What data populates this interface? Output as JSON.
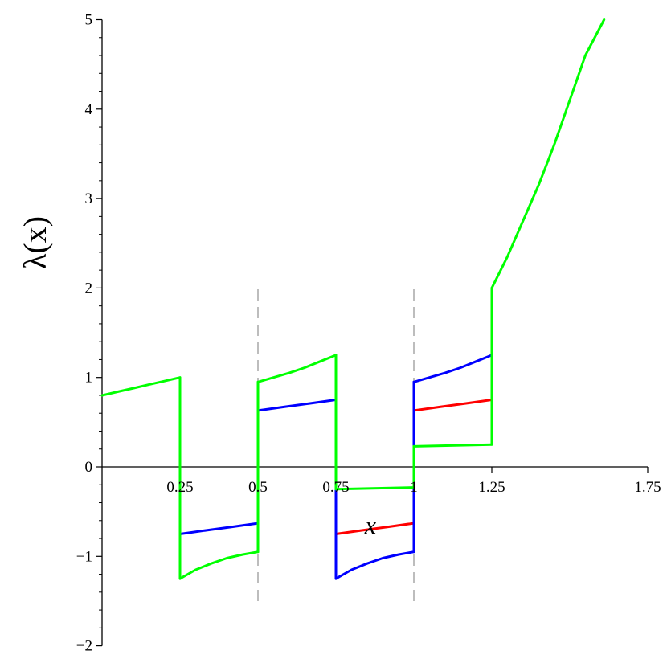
{
  "chart_data": {
    "type": "line",
    "xlabel": "x",
    "ylabel": "λ(x)",
    "xlim": [
      0,
      1.75
    ],
    "ylim": [
      -2,
      5
    ],
    "x_ticks": [
      {
        "value": 0.25,
        "label": "0.25"
      },
      {
        "value": 0.5,
        "label": "0.5"
      },
      {
        "value": 0.75,
        "label": "0.75"
      },
      {
        "value": 1.0,
        "label": "1"
      },
      {
        "value": 1.25,
        "label": "1.25"
      },
      {
        "value": 1.75,
        "label": "1.75"
      }
    ],
    "y_ticks": [
      {
        "value": -2,
        "label": "−2"
      },
      {
        "value": -1,
        "label": "−1"
      },
      {
        "value": 0,
        "label": "0"
      },
      {
        "value": 1,
        "label": "1"
      },
      {
        "value": 2,
        "label": "2"
      },
      {
        "value": 3,
        "label": "3"
      },
      {
        "value": 4,
        "label": "4"
      },
      {
        "value": 5,
        "label": "5"
      }
    ],
    "y_minor_step": 0.2,
    "grid": false,
    "legend": "none",
    "reference_lines": [
      {
        "x": 0.5,
        "y_range": [
          -1.5,
          2.0
        ],
        "style": "dashed",
        "color": "#bdbdbd"
      },
      {
        "x": 1.0,
        "y_range": [
          -1.5,
          2.0
        ],
        "style": "dashed",
        "color": "#bdbdbd"
      }
    ],
    "series": [
      {
        "color": "#ff0000",
        "segments": [
          {
            "x": [
              0.75,
              0.833,
              0.917,
              1.0
            ],
            "y": [
              -0.75,
              -0.71,
              -0.67,
              -0.63
            ]
          },
          {
            "x": [
              1.0,
              1.0
            ],
            "y": [
              -0.63,
              0.63
            ]
          },
          {
            "x": [
              1.0,
              1.083,
              1.167,
              1.25
            ],
            "y": [
              0.63,
              0.67,
              0.71,
              0.75
            ]
          }
        ]
      },
      {
        "color": "#0000ff",
        "segments": [
          {
            "x": [
              0.25,
              0.333,
              0.417,
              0.5
            ],
            "y": [
              -0.75,
              -0.71,
              -0.67,
              -0.63
            ]
          },
          {
            "x": [
              0.5,
              0.5
            ],
            "y": [
              -0.63,
              0.63
            ]
          },
          {
            "x": [
              0.5,
              0.583,
              0.667,
              0.75
            ],
            "y": [
              0.63,
              0.67,
              0.71,
              0.75
            ]
          },
          {
            "x": [
              0.75,
              0.75
            ],
            "y": [
              0.75,
              -1.25
            ]
          },
          {
            "x": [
              0.75,
              0.8,
              0.85,
              0.9,
              0.95,
              1.0
            ],
            "y": [
              -1.25,
              -1.15,
              -1.08,
              -1.02,
              -0.98,
              -0.95
            ]
          },
          {
            "x": [
              1.0,
              1.0
            ],
            "y": [
              -0.95,
              0.95
            ]
          },
          {
            "x": [
              1.0,
              1.05,
              1.1,
              1.15,
              1.2,
              1.25
            ],
            "y": [
              0.95,
              1.0,
              1.05,
              1.11,
              1.18,
              1.25
            ]
          }
        ]
      },
      {
        "color": "#00ff00",
        "segments": [
          {
            "x": [
              0.0,
              0.05,
              0.1,
              0.15,
              0.2,
              0.25
            ],
            "y": [
              0.8,
              0.84,
              0.88,
              0.92,
              0.96,
              1.0
            ]
          },
          {
            "x": [
              0.25,
              0.25
            ],
            "y": [
              1.0,
              -1.25
            ]
          },
          {
            "x": [
              0.25,
              0.3,
              0.35,
              0.4,
              0.45,
              0.5
            ],
            "y": [
              -1.25,
              -1.15,
              -1.08,
              -1.02,
              -0.98,
              -0.95
            ]
          },
          {
            "x": [
              0.5,
              0.5
            ],
            "y": [
              -0.95,
              0.95
            ]
          },
          {
            "x": [
              0.5,
              0.55,
              0.6,
              0.65,
              0.7,
              0.75
            ],
            "y": [
              0.95,
              1.0,
              1.05,
              1.11,
              1.18,
              1.25
            ]
          },
          {
            "x": [
              0.75,
              0.75
            ],
            "y": [
              1.25,
              -0.25
            ]
          },
          {
            "x": [
              0.75,
              1.0
            ],
            "y": [
              -0.25,
              -0.23
            ]
          },
          {
            "x": [
              1.0,
              1.0
            ],
            "y": [
              -0.23,
              0.23
            ]
          },
          {
            "x": [
              1.0,
              1.25
            ],
            "y": [
              0.23,
              0.25
            ]
          },
          {
            "x": [
              1.25,
              1.25
            ],
            "y": [
              0.25,
              2.0
            ]
          },
          {
            "x": [
              1.25,
              1.3,
              1.35,
              1.4,
              1.45,
              1.5,
              1.55,
              1.61
            ],
            "y": [
              2.0,
              2.35,
              2.75,
              3.15,
              3.6,
              4.1,
              4.6,
              5.0
            ]
          }
        ]
      }
    ]
  }
}
